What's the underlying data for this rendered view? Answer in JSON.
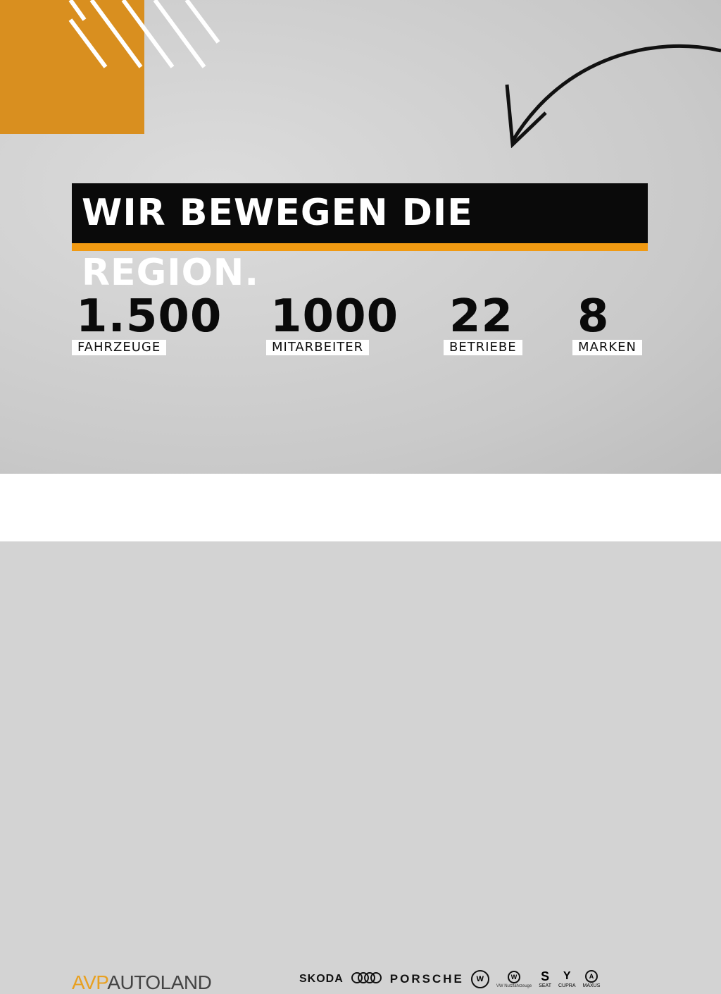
{
  "headline": "WIR BEWEGEN DIE REGION.",
  "colors": {
    "orange": "#d98f1f",
    "accent_underline": "#f19a12",
    "headline_bg": "#0a0a0a"
  },
  "stats": [
    {
      "value": "1.500",
      "label": "FAHRZEUGE"
    },
    {
      "value": "1000",
      "label": "MITARBEITER"
    },
    {
      "value": "22",
      "label": "BETRIEBE"
    },
    {
      "value": "8",
      "label": "MARKEN"
    }
  ],
  "footer": {
    "logo_avp": "AVP",
    "logo_autoland": "AUTOLAND",
    "brands": [
      "SKODA",
      "AUDI",
      "PORSCHE",
      "VW",
      "VW Nutzfahrzeuge",
      "SEAT",
      "CUPRA",
      "MAXUS"
    ]
  }
}
